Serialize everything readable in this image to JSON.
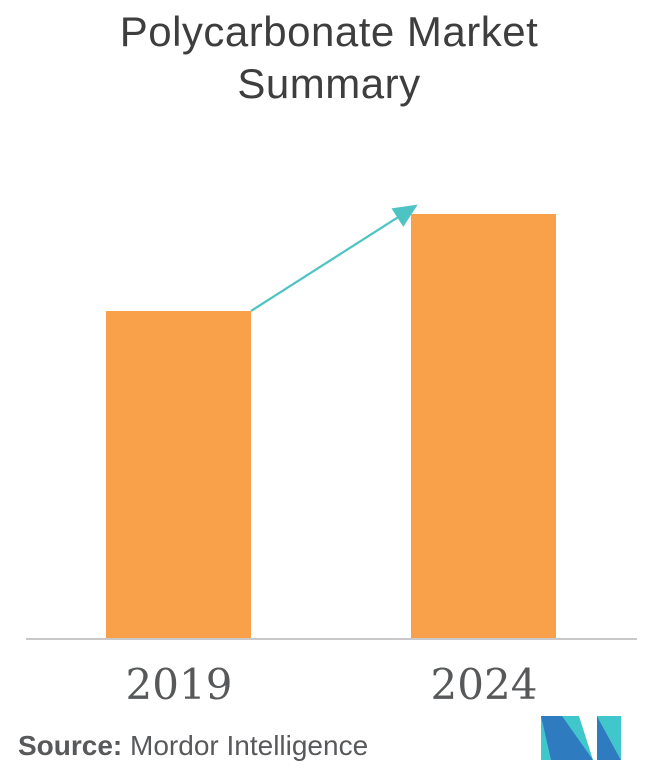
{
  "page": {
    "background": "#ffffff"
  },
  "title": {
    "line1": "Polycarbonate Market",
    "line2": "Summary",
    "color": "#3e3e3e"
  },
  "chart_data": {
    "type": "bar",
    "title": "Polycarbonate Market Summary",
    "categories": [
      "2019",
      "2024"
    ],
    "values": [
      0.772,
      1.0
    ],
    "value_note": "no value axis shown; bar heights are relative, 2024 bar = 1.0",
    "xlabel": "",
    "ylabel": "",
    "grid": false,
    "legend": false,
    "bar_color": "#F9A04A",
    "axis_line_color": "#C9C9CB",
    "category_label_color": "#57585A",
    "trend_arrow": {
      "from_category": "2019",
      "to_category": "2024",
      "direction": "up",
      "color": "#4DC4C3"
    }
  },
  "footer": {
    "source_label": "Source:",
    "source_text": " Mordor Intelligence",
    "color": "#58595B"
  },
  "logo": {
    "name": "mordor-intelligence-logo",
    "teal": "#40C7CB",
    "blue": "#2E7CBF"
  }
}
